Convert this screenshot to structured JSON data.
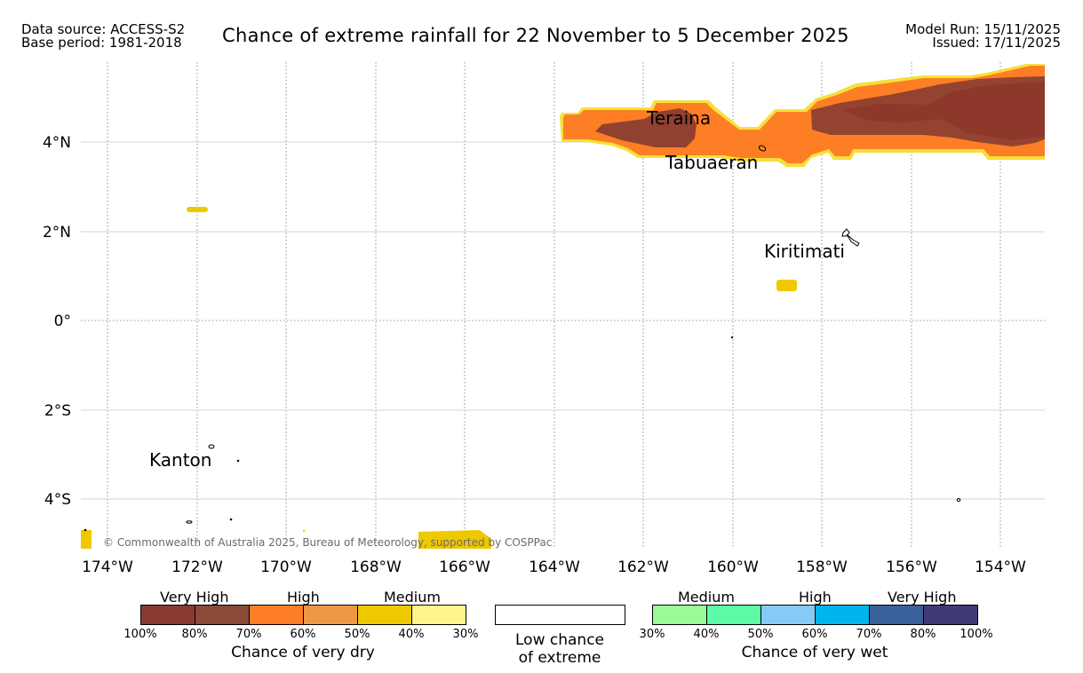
{
  "header": {
    "data_source": "Data source: ACCESS-S2",
    "base_period": "Base period: 1981-2018",
    "title": "Chance of extreme rainfall for 22 November to 5 December 2025",
    "model_run": "Model Run: 15/11/2025",
    "issued": "Issued: 17/11/2025"
  },
  "map": {
    "lon_labels": [
      "174°W",
      "172°W",
      "170°W",
      "168°W",
      "166°W",
      "164°W",
      "162°W",
      "160°W",
      "158°W",
      "156°W",
      "154°W"
    ],
    "lat_labels": [
      "4°N",
      "2°N",
      "0°",
      "2°S",
      "4°S"
    ],
    "places": [
      "Teraina",
      "Tabuaeran",
      "Kiritimati",
      "Kanton"
    ],
    "copyright": "© Commonwealth of Australia 2025, Bureau of Meteorology, supported by COSPPac"
  },
  "legend": {
    "dry": {
      "groups": [
        "Very High",
        "High",
        "Medium"
      ],
      "colors": [
        "#8b3a30",
        "#894a38",
        "#fd7e24",
        "#ee9845",
        "#eec800",
        "#fff58a"
      ],
      "ticks": [
        "100%",
        "80%",
        "70%",
        "60%",
        "50%",
        "40%",
        "30%"
      ],
      "caption": "Chance of very dry"
    },
    "low": {
      "line1": "Low chance",
      "line2": "of extreme"
    },
    "wet": {
      "groups": [
        "Medium",
        "High",
        "Very High"
      ],
      "colors": [
        "#9afb98",
        "#5cfaa6",
        "#85cbf8",
        "#00b5ee",
        "#3a609a",
        "#3e3b76"
      ],
      "ticks": [
        "30%",
        "40%",
        "50%",
        "60%",
        "70%",
        "80%",
        "100%"
      ],
      "caption": "Chance of very wet"
    },
    "colors": {
      "very_high_dry": "#843b31",
      "high_dry": "#fd7e24",
      "medium_dry": "#eec800",
      "outline": "#f5e03a"
    }
  }
}
